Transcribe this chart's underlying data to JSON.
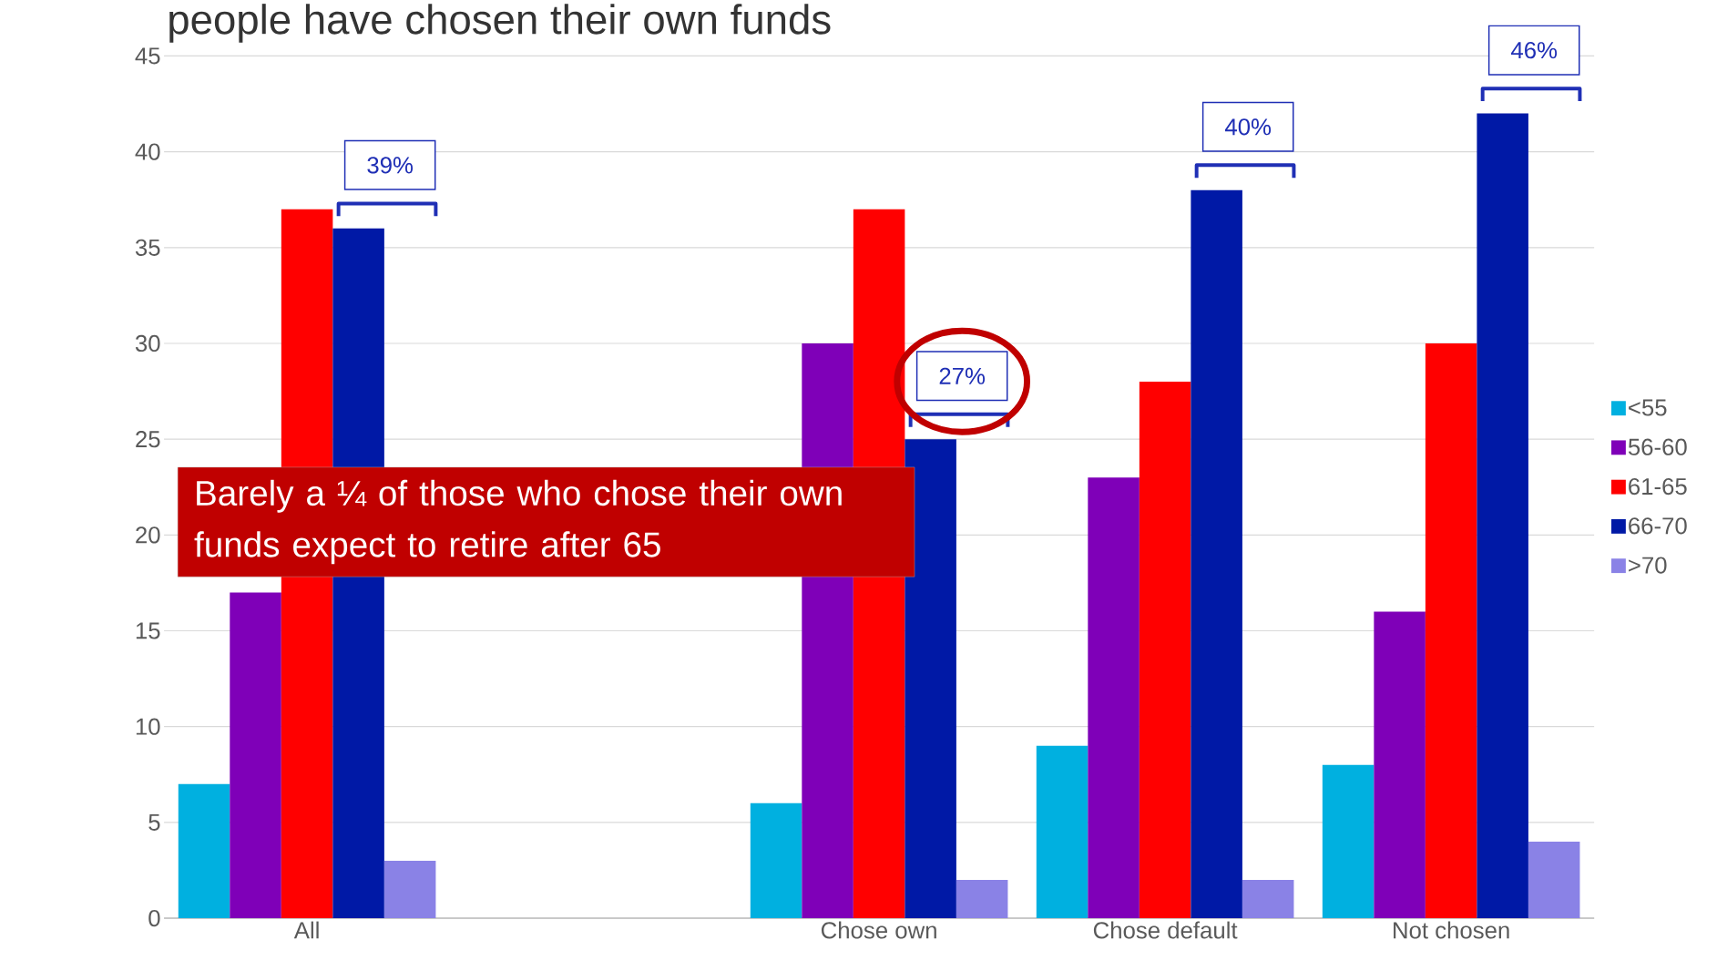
{
  "chart_data": {
    "type": "bar",
    "title": "people have chosen their own funds",
    "categories": [
      "All",
      null,
      "Chose own",
      "Chose default",
      "Not chosen"
    ],
    "series": [
      {
        "name": "<55",
        "color": "#00b0e0",
        "values": [
          7,
          null,
          6,
          9,
          8
        ]
      },
      {
        "name": "56-60",
        "color": "#7f00b8",
        "values": [
          17,
          null,
          30,
          23,
          16
        ]
      },
      {
        "name": "61-65",
        "color": "#ff0000",
        "values": [
          37,
          null,
          37,
          28,
          30
        ]
      },
      {
        "name": "66-70",
        "color": "#0019a6",
        "values": [
          36,
          null,
          25,
          38,
          42
        ]
      },
      {
        "name": ">70",
        "color": "#8a82e6",
        "values": [
          3,
          null,
          2,
          2,
          4
        ]
      }
    ],
    "ylim": [
      0,
      45
    ],
    "yticks": [
      0,
      5,
      10,
      15,
      20,
      25,
      30,
      35,
      40,
      45
    ],
    "grid": "y",
    "legend": "right",
    "annotations": [
      "39%",
      "27%",
      "40%",
      "46%",
      "Barely a ¼ of those who chose their own funds expect to retire after 65"
    ]
  }
}
